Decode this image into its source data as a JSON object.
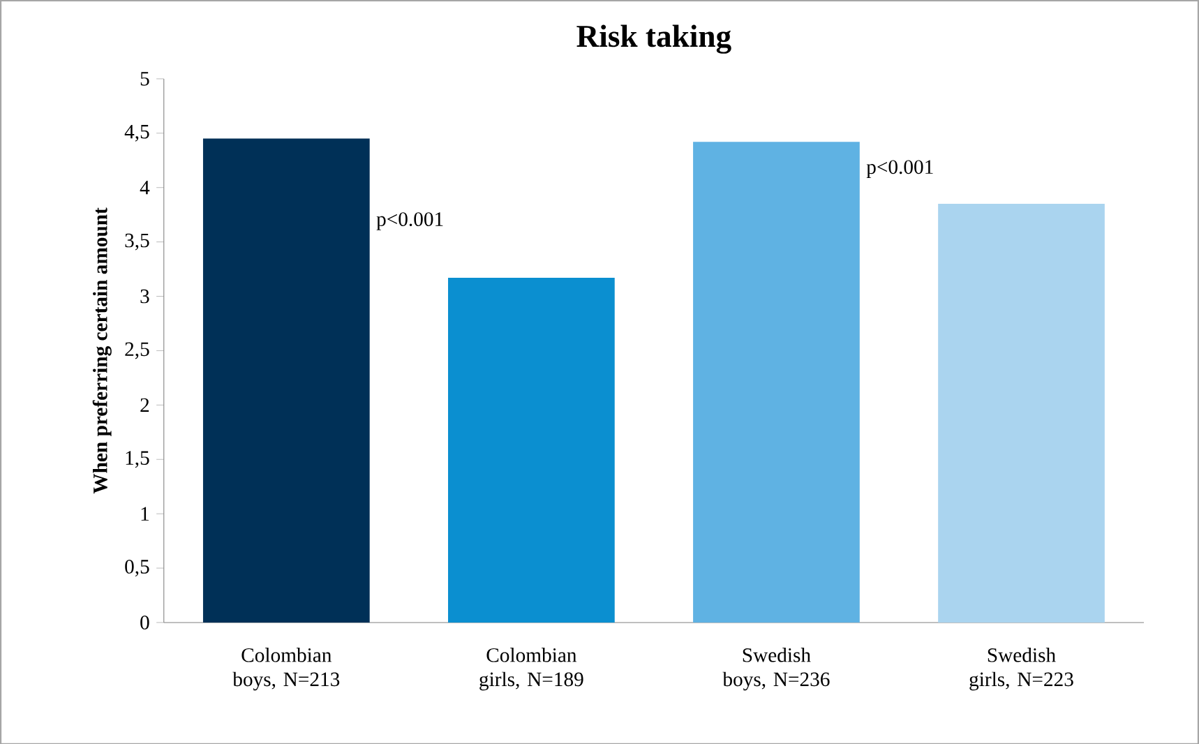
{
  "chart_data": {
    "type": "bar",
    "title": "Risk taking",
    "ylabel": "When preferring certain amount",
    "categories": [
      "Colombian boys, N=213",
      "Colombian girls, N=189",
      "Swedish boys, N=236",
      "Swedish girls, N=223"
    ],
    "values": [
      4.45,
      3.17,
      4.42,
      3.85
    ],
    "colors": [
      "#003057",
      "#0b8fd0",
      "#5fb2e3",
      "#aad4ef"
    ],
    "ylim": [
      0,
      5
    ],
    "yticks": [
      0,
      {
        "value": 0.5,
        "label": "0,5"
      },
      1,
      {
        "value": 1.5,
        "label": "1,5"
      },
      2,
      {
        "value": 2.5,
        "label": "2,5"
      },
      3,
      {
        "value": 3.5,
        "label": "3,5"
      },
      4,
      {
        "value": 4.5,
        "label": "4,5"
      },
      5
    ],
    "annotations": [
      "p<0.001",
      "p<0.001"
    ],
    "grid": false
  }
}
